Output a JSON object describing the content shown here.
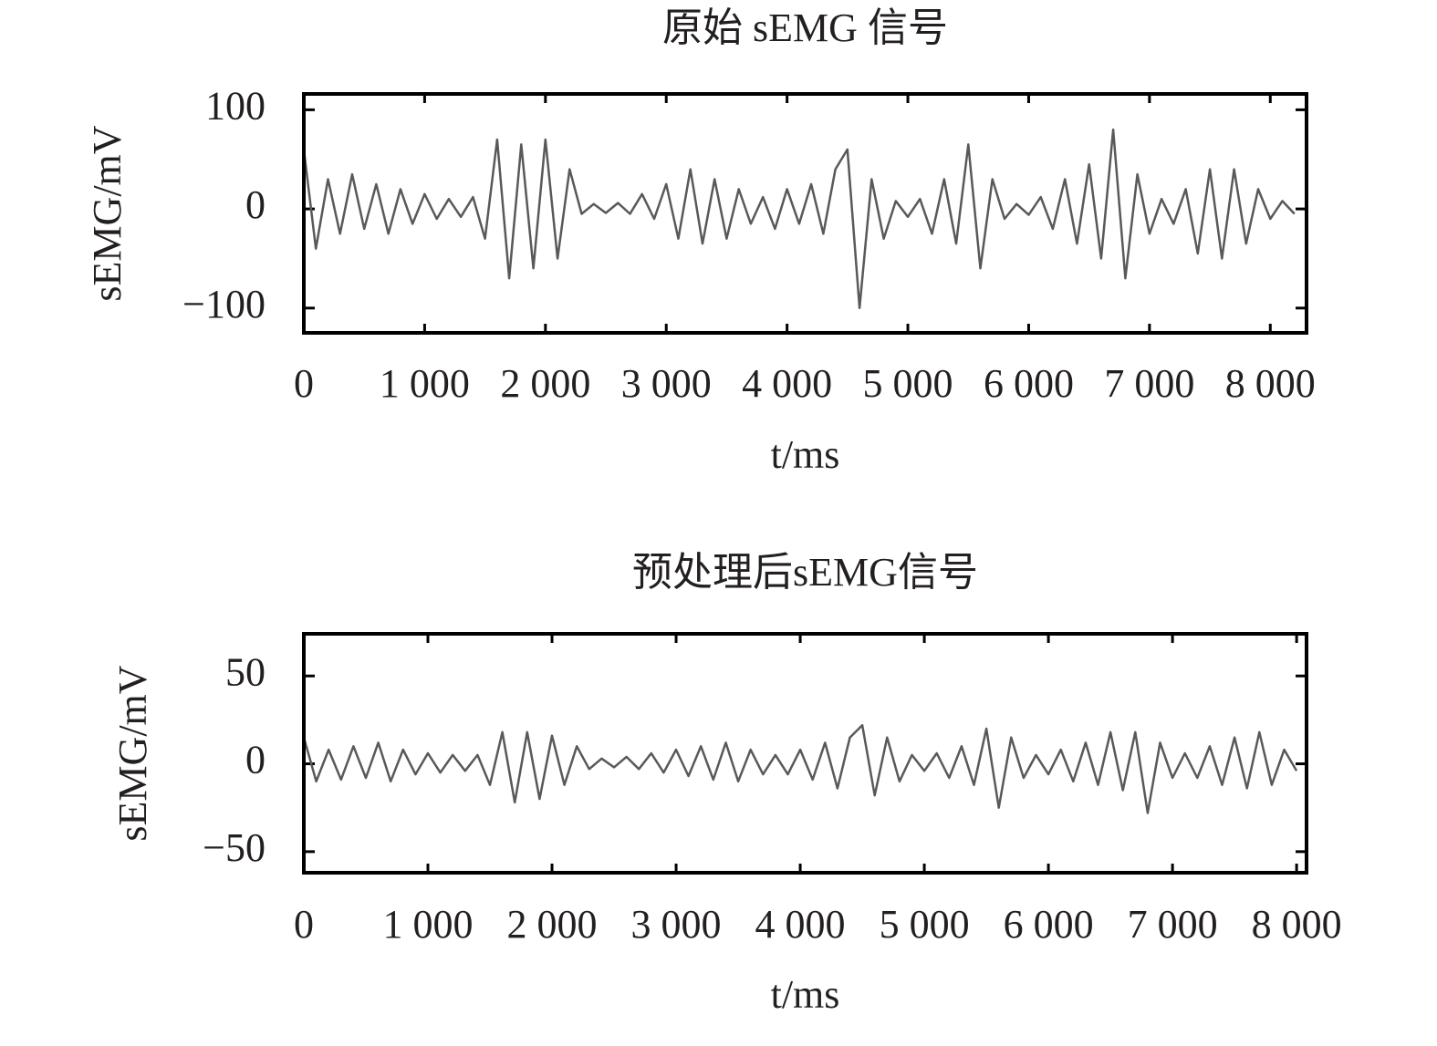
{
  "chart_data": [
    {
      "type": "line",
      "title": "原始 sEMG 信号",
      "xlabel": "t/ms",
      "ylabel": "sEMG/mV",
      "color": "#595959",
      "xlim": [
        0,
        8300
      ],
      "ylim": [
        -125,
        116
      ],
      "xticks": [
        0,
        {
          "value": 1000,
          "label": "1 000"
        },
        {
          "value": 2000,
          "label": "2 000"
        },
        {
          "value": 3000,
          "label": "3 000"
        },
        {
          "value": 4000,
          "label": "4 000"
        },
        {
          "value": 5000,
          "label": "5 000"
        },
        {
          "value": 6000,
          "label": "6 000"
        },
        {
          "value": 7000,
          "label": "7 000"
        },
        {
          "value": 8000,
          "label": "8 000"
        }
      ],
      "yticks": [
        {
          "value": -100,
          "label": "−100"
        },
        0,
        100
      ],
      "x": [
        0,
        100,
        200,
        300,
        400,
        500,
        600,
        700,
        800,
        900,
        1000,
        1100,
        1200,
        1300,
        1400,
        1500,
        1600,
        1700,
        1800,
        1900,
        2000,
        2100,
        2200,
        2300,
        2400,
        2500,
        2600,
        2700,
        2800,
        2900,
        3000,
        3100,
        3200,
        3300,
        3400,
        3500,
        3600,
        3700,
        3800,
        3900,
        4000,
        4100,
        4200,
        4300,
        4400,
        4500,
        4600,
        4700,
        4800,
        4900,
        5000,
        5100,
        5200,
        5300,
        5400,
        5500,
        5600,
        5700,
        5800,
        5900,
        6000,
        6100,
        6200,
        6300,
        6400,
        6500,
        6600,
        6700,
        6800,
        6900,
        7000,
        7100,
        7200,
        7300,
        7400,
        7500,
        7600,
        7700,
        7800,
        7900,
        8000,
        8100,
        8200
      ],
      "values": [
        60,
        -40,
        30,
        -25,
        35,
        -20,
        25,
        -25,
        20,
        -15,
        15,
        -10,
        10,
        -8,
        12,
        -30,
        70,
        -70,
        65,
        -60,
        70,
        -50,
        40,
        -5,
        5,
        -4,
        6,
        -5,
        15,
        -10,
        25,
        -30,
        40,
        -35,
        30,
        -30,
        20,
        -15,
        12,
        -20,
        20,
        -15,
        25,
        -25,
        40,
        60,
        -100,
        30,
        -30,
        8,
        -8,
        10,
        -25,
        30,
        -35,
        65,
        -60,
        30,
        -10,
        5,
        -6,
        12,
        -20,
        30,
        -35,
        45,
        -50,
        80,
        -70,
        35,
        -25,
        10,
        -15,
        20,
        -45,
        40,
        -50,
        40,
        -35,
        20,
        -10,
        8,
        -5
      ]
    },
    {
      "type": "line",
      "title": "预处理后sEMG信号",
      "xlabel": "t/ms",
      "ylabel": "sEMG/mV",
      "color": "#595959",
      "xlim": [
        0,
        8080
      ],
      "ylim": [
        -62,
        74
      ],
      "xticks": [
        0,
        {
          "value": 1000,
          "label": "1 000"
        },
        {
          "value": 2000,
          "label": "2 000"
        },
        {
          "value": 3000,
          "label": "3 000"
        },
        {
          "value": 4000,
          "label": "4 000"
        },
        {
          "value": 5000,
          "label": "5 000"
        },
        {
          "value": 6000,
          "label": "6 000"
        },
        {
          "value": 7000,
          "label": "7 000"
        },
        {
          "value": 8000,
          "label": "8 000"
        }
      ],
      "yticks": [
        {
          "value": -50,
          "label": "−50"
        },
        0,
        50
      ],
      "x": [
        0,
        100,
        200,
        300,
        400,
        500,
        600,
        700,
        800,
        900,
        1000,
        1100,
        1200,
        1300,
        1400,
        1500,
        1600,
        1700,
        1800,
        1900,
        2000,
        2100,
        2200,
        2300,
        2400,
        2500,
        2600,
        2700,
        2800,
        2900,
        3000,
        3100,
        3200,
        3300,
        3400,
        3500,
        3600,
        3700,
        3800,
        3900,
        4000,
        4100,
        4200,
        4300,
        4400,
        4500,
        4600,
        4700,
        4800,
        4900,
        5000,
        5100,
        5200,
        5300,
        5400,
        5500,
        5600,
        5700,
        5800,
        5900,
        6000,
        6100,
        6200,
        6300,
        6400,
        6500,
        6600,
        6700,
        6800,
        6900,
        7000,
        7100,
        7200,
        7300,
        7400,
        7500,
        7600,
        7700,
        7800,
        7900,
        8000
      ],
      "values": [
        15,
        -10,
        8,
        -9,
        10,
        -8,
        12,
        -10,
        8,
        -6,
        6,
        -5,
        5,
        -4,
        5,
        -12,
        18,
        -22,
        18,
        -20,
        16,
        -12,
        10,
        -3,
        3,
        -2,
        4,
        -3,
        6,
        -5,
        8,
        -7,
        10,
        -9,
        12,
        -10,
        8,
        -6,
        5,
        -6,
        8,
        -9,
        12,
        -14,
        15,
        22,
        -18,
        15,
        -10,
        5,
        -4,
        6,
        -8,
        10,
        -12,
        20,
        -25,
        15,
        -8,
        5,
        -6,
        8,
        -10,
        12,
        -12,
        18,
        -15,
        18,
        -28,
        12,
        -8,
        6,
        -8,
        10,
        -12,
        15,
        -14,
        18,
        -12,
        8,
        -4
      ]
    }
  ]
}
